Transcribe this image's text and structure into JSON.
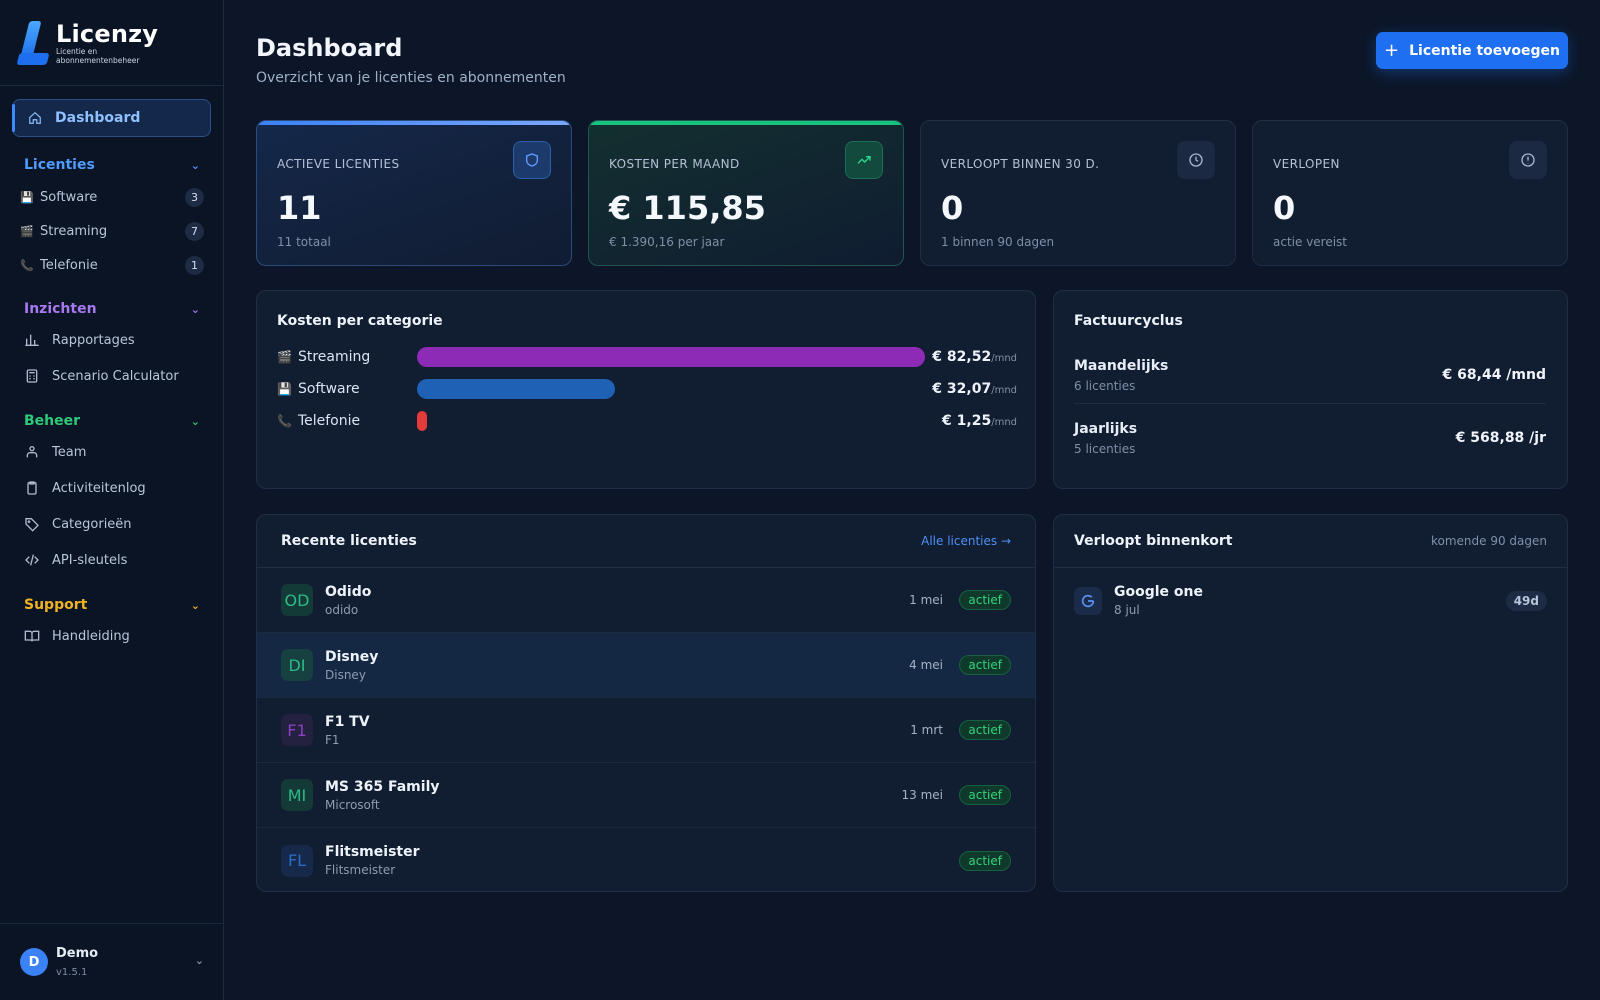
{
  "brand": {
    "name": "Licenzy",
    "tagline": "Licentie en abonnementenbeheer"
  },
  "nav": {
    "dashboard": "Dashboard",
    "sections": [
      {
        "title": "Licenties",
        "color": "#4f9bff",
        "items": [
          {
            "label": "Software",
            "icon": "floppy-disk-icon",
            "emoji": "💾",
            "count": "3"
          },
          {
            "label": "Streaming",
            "icon": "clapperboard-icon",
            "emoji": "🎬",
            "count": "7"
          },
          {
            "label": "Telefonie",
            "icon": "phone-icon",
            "emoji": "📞",
            "count": "1"
          }
        ]
      },
      {
        "title": "Inzichten",
        "color": "#a779f0",
        "items": [
          {
            "label": "Rapportages",
            "icon": "bar-chart-icon"
          },
          {
            "label": "Scenario Calculator",
            "icon": "calculator-icon"
          }
        ]
      },
      {
        "title": "Beheer",
        "color": "#2fc97a",
        "items": [
          {
            "label": "Team",
            "icon": "team-icon"
          },
          {
            "label": "Activiteitenlog",
            "icon": "clipboard-icon"
          },
          {
            "label": "Categorieën",
            "icon": "tag-icon"
          },
          {
            "label": "API-sleutels",
            "icon": "code-icon"
          }
        ]
      },
      {
        "title": "Support",
        "color": "#f0b323",
        "items": [
          {
            "label": "Handleiding",
            "icon": "book-icon"
          }
        ]
      }
    ]
  },
  "user": {
    "initial": "D",
    "name": "Demo",
    "version": "v1.5.1"
  },
  "header": {
    "title": "Dashboard",
    "subtitle": "Overzicht van je licenties en abonnementen",
    "add_label": "Licentie toevoegen"
  },
  "stats": [
    {
      "label": "ACTIEVE LICENTIES",
      "value": "11",
      "note": "11 totaal",
      "icon": "shield-icon",
      "accent": "#4f8ff7"
    },
    {
      "label": "KOSTEN PER MAAND",
      "value": "€ 115,85",
      "note": "€ 1.390,16 per jaar",
      "icon": "trending-up-icon",
      "accent": "#19c37d"
    },
    {
      "label": "VERLOOPT BINNEN 30 D.",
      "value": "0",
      "note": "1 binnen 90 dagen",
      "icon": "clock-icon"
    },
    {
      "label": "VERLOPEN",
      "value": "0",
      "note": "actie vereist",
      "icon": "alert-icon"
    }
  ],
  "categories": {
    "title": "Kosten per categorie",
    "unit": "/mnd",
    "items": [
      {
        "name": "Streaming",
        "emoji": "🎬",
        "amount": "€ 82,52",
        "fraction": 1.0,
        "color": "#8d2bb7"
      },
      {
        "name": "Software",
        "emoji": "💾",
        "amount": "€ 32,07",
        "fraction": 0.389,
        "color": "#1f62b5"
      },
      {
        "name": "Telefonie",
        "emoji": "📞",
        "amount": "€ 1,25",
        "fraction": 0.02,
        "color": "#e33a3a"
      }
    ]
  },
  "cycle": {
    "title": "Factuurcyclus",
    "items": [
      {
        "name": "Maandelijks",
        "count": "6 licenties",
        "amount": "€ 68,44 /mnd"
      },
      {
        "name": "Jaarlijks",
        "count": "5 licenties",
        "amount": "€ 568,88 /jr"
      }
    ]
  },
  "recent": {
    "title": "Recente licenties",
    "link": "Alle licenties →",
    "rows": [
      {
        "mono": "OD",
        "mono_color": "#2fb986",
        "mono_bg": "#143a37",
        "name": "Odido",
        "sub": "odido",
        "date": "1 mei",
        "status": "actief"
      },
      {
        "mono": "DI",
        "mono_color": "#2fb986",
        "mono_bg": "#174040",
        "name": "Disney",
        "sub": "Disney",
        "date": "4 mei",
        "status": "actief"
      },
      {
        "mono": "F1",
        "mono_color": "#8a3fc0",
        "mono_bg": "#24203f",
        "name": "F1 TV",
        "sub": "F1",
        "date": "1 mrt",
        "status": "actief"
      },
      {
        "mono": "MI",
        "mono_color": "#2fb986",
        "mono_bg": "#143a37",
        "name": "MS 365 Family",
        "sub": "Microsoft",
        "date": "13 mei",
        "status": "actief"
      },
      {
        "mono": "FL",
        "mono_color": "#2a6cc0",
        "mono_bg": "#16294a",
        "name": "Flitsmeister",
        "sub": "Flitsmeister",
        "date": "",
        "status": "actief"
      }
    ]
  },
  "expiring": {
    "title": "Verloopt binnenkort",
    "range": "komende 90 dagen",
    "rows": [
      {
        "icon": "google-icon",
        "name": "Google one",
        "date": "8 jul",
        "days": "49d"
      }
    ]
  }
}
